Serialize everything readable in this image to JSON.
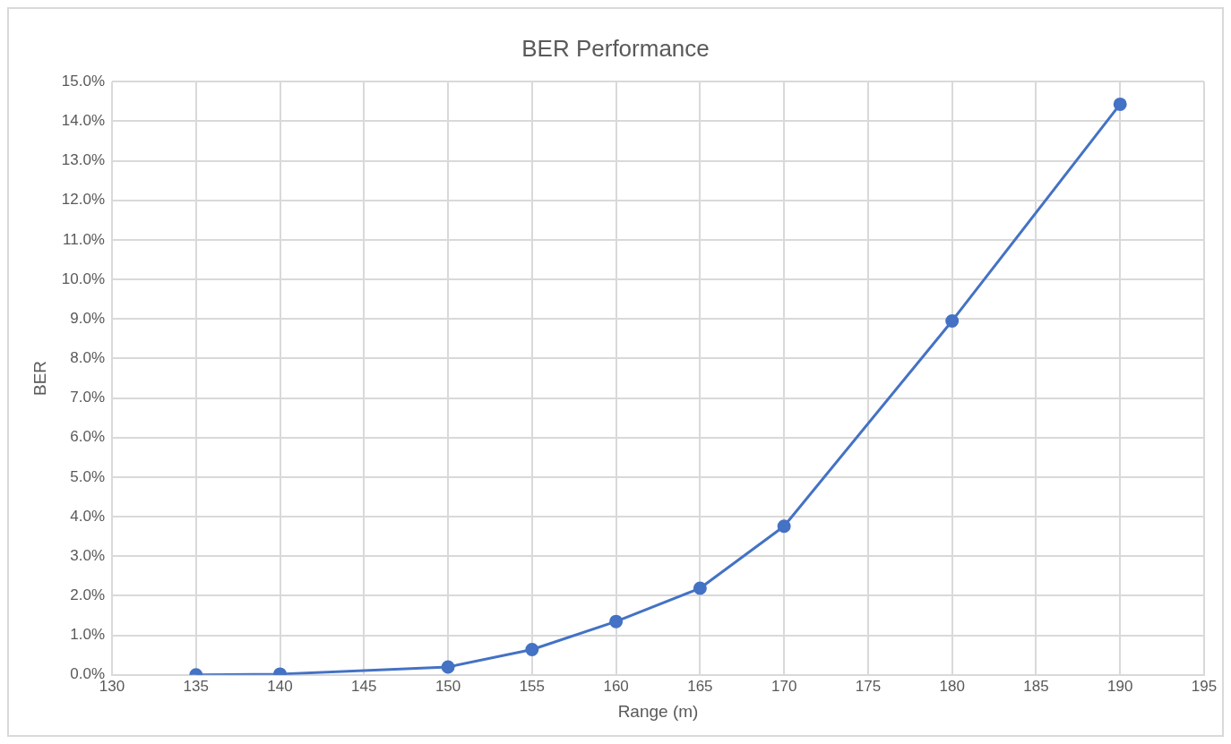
{
  "chart_data": {
    "type": "line",
    "title": "BER Performance",
    "xlabel": "Range (m)",
    "ylabel": "BER",
    "x": [
      135,
      140,
      150,
      155,
      160,
      165,
      170,
      180,
      190
    ],
    "series": [
      {
        "color": "#4472c4",
        "values": [
          0.0,
          0.02,
          0.2,
          0.64,
          1.35,
          2.19,
          3.76,
          8.95,
          14.43
        ]
      }
    ],
    "xlim": [
      130,
      195
    ],
    "xticks": [
      130,
      135,
      140,
      145,
      150,
      155,
      160,
      165,
      170,
      175,
      180,
      185,
      190,
      195
    ],
    "ylim": [
      0,
      15
    ],
    "yticks": [
      {
        "value": 0,
        "label": "0.0%"
      },
      {
        "value": 1,
        "label": "1.0%"
      },
      {
        "value": 2,
        "label": "2.0%"
      },
      {
        "value": 3,
        "label": "3.0%"
      },
      {
        "value": 4,
        "label": "4.0%"
      },
      {
        "value": 5,
        "label": "5.0%"
      },
      {
        "value": 6,
        "label": "6.0%"
      },
      {
        "value": 7,
        "label": "7.0%"
      },
      {
        "value": 8,
        "label": "8.0%"
      },
      {
        "value": 9,
        "label": "9.0%"
      },
      {
        "value": 10,
        "label": "10.0%"
      },
      {
        "value": 11,
        "label": "11.0%"
      },
      {
        "value": 12,
        "label": "12.0%"
      },
      {
        "value": 13,
        "label": "13.0%"
      },
      {
        "value": 14,
        "label": "14.0%"
      },
      {
        "value": 15,
        "label": "15.0%"
      }
    ],
    "grid": true,
    "legend": false,
    "marker": "circle",
    "line_style": "solid"
  }
}
